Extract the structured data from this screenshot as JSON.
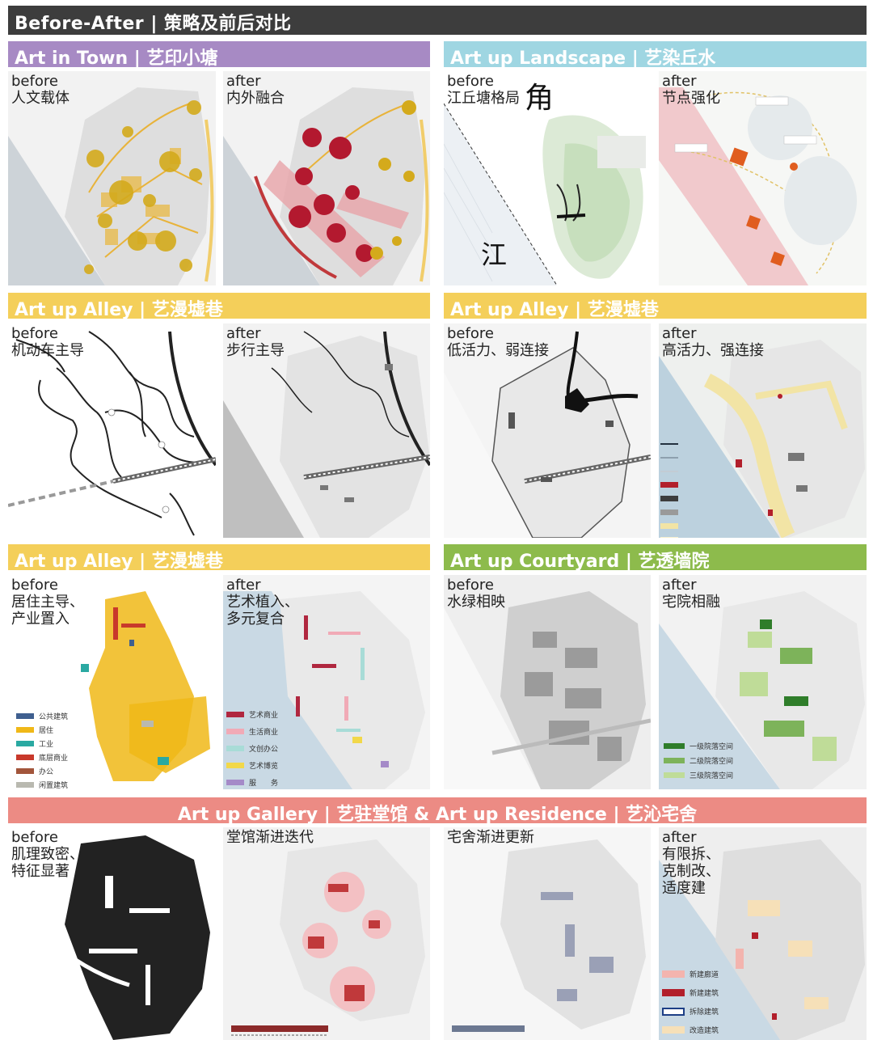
{
  "header": {
    "title": "Before-After | 策略及前后对比"
  },
  "colors": {
    "purple": "#a78ac4",
    "cyan": "#9fd6e2",
    "yellow": "#f4cf5a",
    "green": "#8dbb4c",
    "coral": "#ec8b84",
    "header_bg": "#3d3d3d",
    "water": "#c9d9e4",
    "land": "#eeeeee"
  },
  "sections": {
    "town": {
      "title": "Art in Town | 艺印小塘"
    },
    "landscape": {
      "title": "Art up Landscape | 艺染丘水"
    },
    "alley1": {
      "title": "Art up Alley | 艺漫墟巷"
    },
    "alley2": {
      "title": "Art up Alley | 艺漫墟巷"
    },
    "alley3": {
      "title": "Art up Alley | 艺漫墟巷"
    },
    "courtyard": {
      "title": "Art up Courtyard | 艺透墙院"
    },
    "gallery": {
      "title": "Art up Gallery | 艺驻堂馆  &  Art up Residence | 艺沁宅舍"
    }
  },
  "panels": {
    "p1": {
      "line1": "before",
      "line2": "人文载体"
    },
    "p2": {
      "line1": "after",
      "line2": "内外融合"
    },
    "p3": {
      "line1": "before",
      "line2": "江丘塘格局",
      "glyph_a": "角",
      "glyph_b": "江"
    },
    "p4": {
      "line1": "after",
      "line2": "节点强化"
    },
    "p5": {
      "line1": "before",
      "line2": "机动车主导"
    },
    "p6": {
      "line1": "after",
      "line2": "步行主导"
    },
    "p7": {
      "line1": "before",
      "line2": "低活力、弱连接"
    },
    "p8": {
      "line1": "after",
      "line2": "高活力、强连接"
    },
    "p9": {
      "line1": "before",
      "line2": "居住主导、",
      "line3": "产业置入"
    },
    "p10": {
      "line1": "after",
      "line2": "艺术植入、",
      "line3": "多元复合"
    },
    "p11": {
      "line1": "before",
      "line2": "水绿相映"
    },
    "p12": {
      "line1": "after",
      "line2": "宅院相融"
    },
    "p13": {
      "line1": "before",
      "line2": "肌理致密、",
      "line3": "特征显著"
    },
    "p14": {
      "line1": "堂馆渐进迭代"
    },
    "p15": {
      "line1": "宅舍渐进更新"
    },
    "p16": {
      "line1": "after",
      "line2": "有限拆、",
      "line3": "克制改、",
      "line4": "适度建"
    }
  },
  "legends": {
    "p9": [
      {
        "label": "公共建筑",
        "color": "#3f5f8f"
      },
      {
        "label": "居住",
        "color": "#f0b818"
      },
      {
        "label": "工业",
        "color": "#2aa9a2"
      },
      {
        "label": "底层商业",
        "color": "#c8392b"
      },
      {
        "label": "办公",
        "color": "#a2553b"
      },
      {
        "label": "闲置建筑",
        "color": "#b9b9b0"
      }
    ],
    "p10": [
      {
        "label": "艺术商业",
        "color": "#b0273f"
      },
      {
        "label": "生活商业",
        "color": "#f1aab6"
      },
      {
        "label": "文创办公",
        "color": "#a8dcd7"
      },
      {
        "label": "艺术博览",
        "color": "#f2d84a"
      },
      {
        "label": "服　　务",
        "color": "#a58ac8"
      }
    ],
    "p12": [
      {
        "label": "一级院落空间",
        "color": "#2f7d2a"
      },
      {
        "label": "二级院落空间",
        "color": "#7db35a"
      },
      {
        "label": "三级院落空间",
        "color": "#bfdc98"
      }
    ],
    "p16": [
      {
        "label": "新建廊道",
        "color": "#f3b4ae"
      },
      {
        "label": "新建建筑",
        "color": "#b21f2b"
      },
      {
        "label": "拆除建筑",
        "color": "#ffffff",
        "border": "#1d3f86"
      },
      {
        "label": "改造建筑",
        "color": "#f6e0b8"
      }
    ]
  }
}
